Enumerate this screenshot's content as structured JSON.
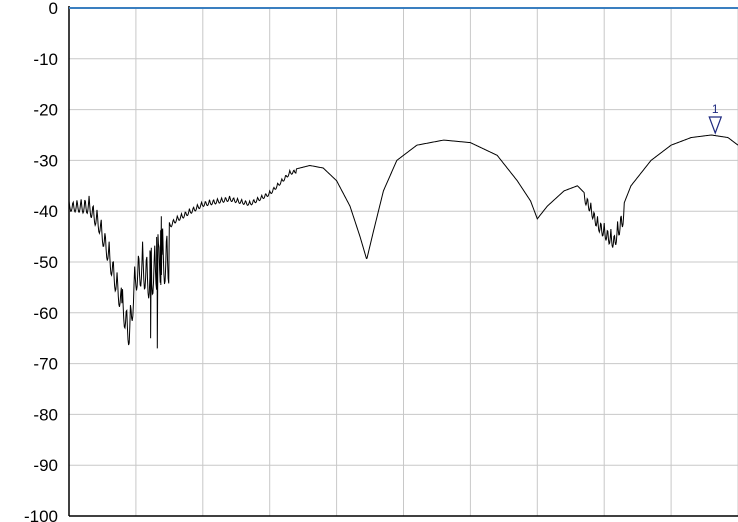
{
  "chart_data": {
    "type": "line",
    "title": "",
    "xlabel": "",
    "ylabel": "",
    "ylim": [
      -100,
      0
    ],
    "y_ticks": [
      "0",
      "-10",
      "-20",
      "-30",
      "-40",
      "-50",
      "-60",
      "-70",
      "-80",
      "-90",
      "-100"
    ],
    "x_divisions": 10,
    "grid": true,
    "colors": {
      "trace": "#000000",
      "grid": "#c8c8c8",
      "axis": "#000000",
      "reference_line": "#3a7fc0",
      "marker": "#1f2a80"
    },
    "reference_level": 0,
    "marker": {
      "label": "1",
      "x": 0.966,
      "y": -25
    },
    "trace_envelope": [
      [
        0.0,
        -38
      ],
      [
        0.03,
        -37
      ],
      [
        0.045,
        -40
      ],
      [
        0.06,
        -46
      ],
      [
        0.075,
        -53
      ],
      [
        0.09,
        -60
      ],
      [
        0.1,
        -48
      ],
      [
        0.11,
        -46
      ],
      [
        0.12,
        -48
      ],
      [
        0.135,
        -44
      ],
      [
        0.16,
        -41
      ],
      [
        0.2,
        -38
      ],
      [
        0.24,
        -37
      ],
      [
        0.27,
        -38
      ],
      [
        0.3,
        -36
      ],
      [
        0.33,
        -32
      ],
      [
        0.36,
        -31
      ],
      [
        0.38,
        -31.5
      ],
      [
        0.4,
        -34
      ],
      [
        0.42,
        -39
      ],
      [
        0.435,
        -45
      ],
      [
        0.445,
        -49.5
      ],
      [
        0.455,
        -44
      ],
      [
        0.47,
        -36
      ],
      [
        0.49,
        -30
      ],
      [
        0.52,
        -27
      ],
      [
        0.56,
        -26
      ],
      [
        0.6,
        -26.5
      ],
      [
        0.64,
        -29
      ],
      [
        0.67,
        -34
      ],
      [
        0.69,
        -38
      ],
      [
        0.7,
        -41.5
      ],
      [
        0.715,
        -39
      ],
      [
        0.74,
        -36
      ],
      [
        0.76,
        -35
      ],
      [
        0.775,
        -37
      ],
      [
        0.79,
        -41
      ],
      [
        0.805,
        -43
      ],
      [
        0.815,
        -44
      ],
      [
        0.825,
        -40
      ],
      [
        0.84,
        -35
      ],
      [
        0.87,
        -30
      ],
      [
        0.9,
        -27
      ],
      [
        0.93,
        -25.5
      ],
      [
        0.96,
        -25
      ],
      [
        0.985,
        -25.5
      ],
      [
        1.0,
        -27
      ]
    ],
    "ripple_segments": [
      {
        "x_start": 0.0,
        "x_end": 0.08,
        "spacing": 0.006,
        "amplitude": [
          2,
          6
        ]
      },
      {
        "x_start": 0.08,
        "x_end": 0.15,
        "spacing": 0.006,
        "amplitude": [
          6,
          12
        ]
      },
      {
        "x_start": 0.15,
        "x_end": 0.34,
        "spacing": 0.006,
        "amplitude": [
          1.2,
          0.8
        ]
      },
      {
        "x_start": 0.77,
        "x_end": 0.83,
        "spacing": 0.005,
        "amplitude": [
          2,
          4
        ]
      }
    ],
    "notches": [
      {
        "x": 0.122,
        "y": -65
      },
      {
        "x": 0.132,
        "y": -67
      },
      {
        "x": 0.138,
        "y": -41
      }
    ]
  }
}
